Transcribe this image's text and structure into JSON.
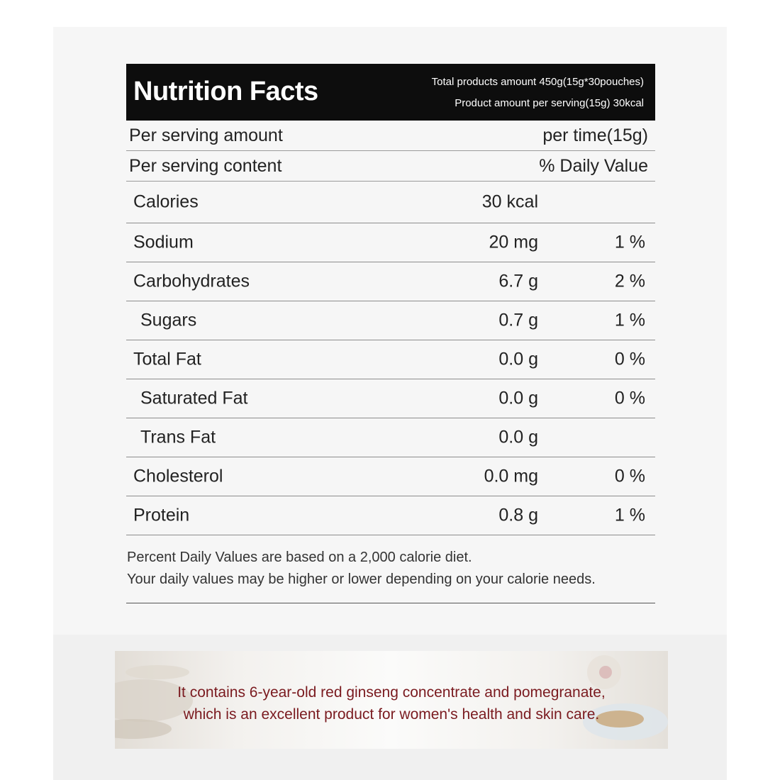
{
  "label": {
    "title": "Nutrition Facts",
    "total_amount": "Total products amount 450g(15g*30pouches)",
    "per_serving_amount": "Product amount per serving(15g) 30kcal",
    "serving_row": {
      "left": "Per serving amount",
      "right": "per time(15g)"
    },
    "content_row": {
      "left": "Per serving content",
      "right": "% Daily Value"
    },
    "nutrients": [
      {
        "name": "Calories",
        "amount": "30 kcal",
        "dv": ""
      },
      {
        "name": "Sodium",
        "amount": "20 mg",
        "dv": "1 %"
      },
      {
        "name": "Carbohydrates",
        "amount": "6.7 g",
        "dv": "2 %"
      },
      {
        "name": "Sugars",
        "amount": "0.7 g",
        "dv": "1 %"
      },
      {
        "name": "Total Fat",
        "amount": "0.0 g",
        "dv": "0 %"
      },
      {
        "name": "Saturated Fat",
        "amount": "0.0 g",
        "dv": "0 %"
      },
      {
        "name": "Trans Fat",
        "amount": "0.0 g",
        "dv": ""
      },
      {
        "name": "Cholesterol",
        "amount": "0.0 mg",
        "dv": "0 %"
      },
      {
        "name": "Protein",
        "amount": "0.8 g",
        "dv": "1 %"
      }
    ],
    "footnote_1": "Percent Daily Values are based on a 2,000 calorie diet.",
    "footnote_2": "Your daily values may be higher or lower depending on your calorie needs."
  },
  "banner": {
    "line_1": "It contains 6-year-old red ginseng concentrate and pomegranate,",
    "line_2": "which is an excellent product for women's health and skin care.",
    "text_color": "#7a1a1f"
  },
  "colors": {
    "header_bg": "#0d0d0d",
    "panel_bg": "#f6f6f6"
  }
}
